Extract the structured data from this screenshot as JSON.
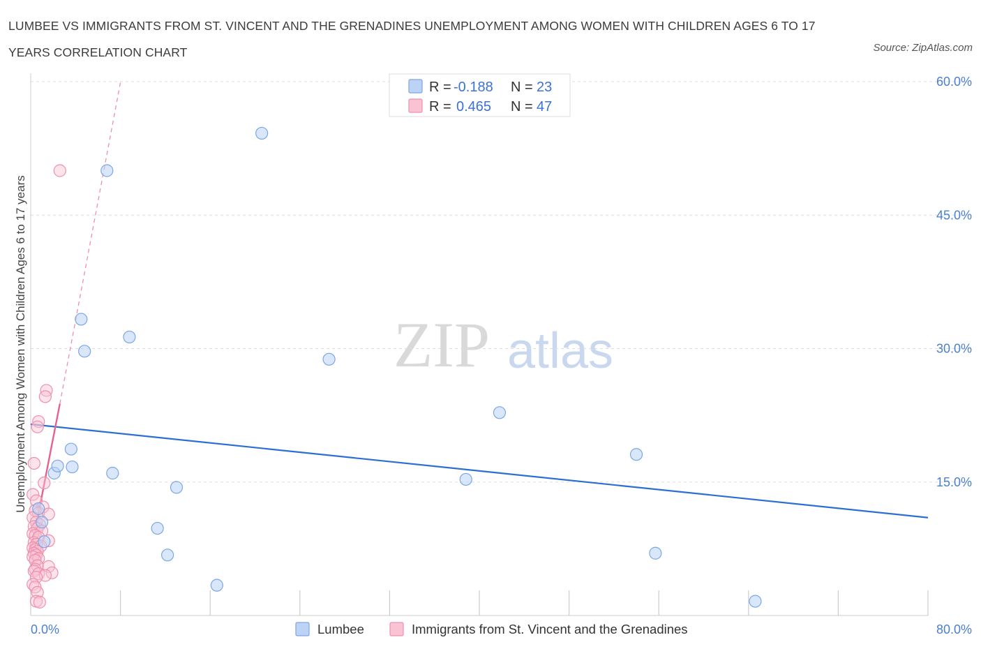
{
  "header": {
    "title": "LUMBEE VS IMMIGRANTS FROM ST. VINCENT AND THE GRENADINES UNEMPLOYMENT AMONG WOMEN WITH CHILDREN AGES 6 TO 17 YEARS CORRELATION CHART",
    "source": "Source: ZipAtlas.com"
  },
  "watermark": {
    "zip": "ZIP",
    "atlas": "atlas"
  },
  "legend": {
    "r_label": "R =",
    "n_label": "N =",
    "rows": [
      {
        "r": "-0.188",
        "n": "23"
      },
      {
        "r": "0.465",
        "n": "47"
      }
    ]
  },
  "colors": {
    "lumbee_fill": "#bcd3f5",
    "lumbee_stroke": "#7aa6e6",
    "lumbee_line": "#2c6fd1",
    "svg_fill": "#f9c3d3",
    "svg_stroke": "#ee8fae",
    "svg_line": "#e8608e",
    "grid": "#dddddd",
    "tick_text": "#4a7fd0"
  },
  "chart_data": {
    "type": "scatter",
    "title": "LUMBEE VS IMMIGRANTS FROM ST. VINCENT AND THE GRENADINES UNEMPLOYMENT AMONG WOMEN WITH CHILDREN AGES 6 TO 17 YEARS CORRELATION CHART",
    "xlabel": "",
    "ylabel": "Unemployment Among Women with Children Ages 6 to 17 years",
    "xlim": [
      0,
      80
    ],
    "ylim": [
      0,
      60
    ],
    "x_tick_labels": [
      "0.0%",
      "80.0%"
    ],
    "y_ticks": [
      15,
      30,
      45,
      60
    ],
    "y_tick_labels": [
      "15.0%",
      "30.0%",
      "45.0%",
      "60.0%"
    ],
    "grid": true,
    "legend_position": "top-center",
    "series": [
      {
        "name": "Lumbee",
        "r": -0.188,
        "n": 23,
        "trend": {
          "x": [
            0,
            80
          ],
          "y": [
            21.5,
            11.0
          ]
        },
        "points": [
          [
            1.0,
            10.5
          ],
          [
            1.2,
            8.3
          ],
          [
            2.1,
            16.0
          ],
          [
            2.4,
            16.8
          ],
          [
            3.6,
            18.7
          ],
          [
            3.7,
            16.7
          ],
          [
            4.5,
            33.3
          ],
          [
            4.8,
            29.7
          ],
          [
            6.8,
            50.0
          ],
          [
            7.3,
            16.0
          ],
          [
            8.8,
            31.3
          ],
          [
            11.3,
            9.8
          ],
          [
            12.2,
            6.8
          ],
          [
            13.0,
            14.4
          ],
          [
            16.6,
            3.4
          ],
          [
            20.6,
            54.2
          ],
          [
            26.6,
            28.8
          ],
          [
            38.8,
            15.3
          ],
          [
            41.8,
            22.8
          ],
          [
            54.0,
            18.1
          ],
          [
            55.7,
            7.0
          ],
          [
            64.6,
            1.6
          ],
          [
            0.7,
            12.0
          ]
        ]
      },
      {
        "name": "Immigrants from St. Vincent and the Grenadines",
        "r": 0.465,
        "n": 47,
        "trend_solid": {
          "x": [
            0,
            2.6
          ],
          "y": [
            7.0,
            23.8
          ]
        },
        "trend_dashed": {
          "x": [
            2.6,
            8.0
          ],
          "y": [
            23.8,
            59.9
          ]
        },
        "points": [
          [
            2.6,
            50.0
          ],
          [
            1.4,
            25.3
          ],
          [
            1.3,
            24.6
          ],
          [
            0.7,
            21.8
          ],
          [
            0.6,
            21.2
          ],
          [
            0.3,
            17.1
          ],
          [
            1.2,
            14.9
          ],
          [
            0.2,
            13.6
          ],
          [
            0.5,
            12.9
          ],
          [
            1.1,
            12.2
          ],
          [
            0.4,
            11.8
          ],
          [
            0.7,
            11.5
          ],
          [
            1.6,
            11.4
          ],
          [
            0.2,
            11.0
          ],
          [
            0.5,
            10.5
          ],
          [
            0.8,
            10.2
          ],
          [
            0.3,
            10.0
          ],
          [
            0.6,
            9.8
          ],
          [
            1.0,
            9.5
          ],
          [
            0.2,
            9.2
          ],
          [
            0.4,
            9.0
          ],
          [
            0.7,
            8.8
          ],
          [
            1.6,
            8.4
          ],
          [
            0.3,
            8.2
          ],
          [
            0.5,
            8.0
          ],
          [
            0.9,
            7.8
          ],
          [
            0.2,
            7.6
          ],
          [
            0.4,
            7.4
          ],
          [
            0.6,
            7.2
          ],
          [
            0.3,
            7.0
          ],
          [
            0.5,
            6.8
          ],
          [
            0.2,
            6.6
          ],
          [
            0.7,
            6.4
          ],
          [
            0.4,
            6.2
          ],
          [
            0.6,
            5.6
          ],
          [
            1.6,
            5.5
          ],
          [
            0.4,
            5.2
          ],
          [
            0.3,
            5.0
          ],
          [
            1.9,
            4.8
          ],
          [
            0.7,
            4.7
          ],
          [
            1.3,
            4.5
          ],
          [
            0.5,
            4.3
          ],
          [
            0.2,
            3.5
          ],
          [
            0.4,
            3.2
          ],
          [
            0.6,
            2.6
          ],
          [
            0.5,
            1.6
          ],
          [
            0.8,
            1.5
          ]
        ]
      }
    ]
  },
  "bottom_legend": [
    {
      "label": "Lumbee"
    },
    {
      "label": "Immigrants from St. Vincent and the Grenadines"
    }
  ]
}
